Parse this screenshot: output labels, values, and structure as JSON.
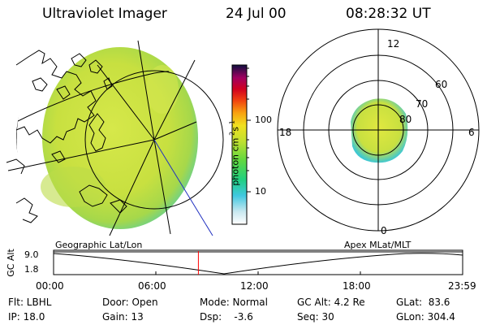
{
  "header": {
    "instrument": "Ultraviolet Imager",
    "date": "24 Jul 00",
    "time": "08:28:32 UT"
  },
  "colorbar": {
    "unit_label": "photon cm",
    "unit_exp1": "-2",
    "unit_mid": "s",
    "unit_exp2": "-1",
    "tick_labels": [
      "100",
      "10"
    ],
    "tick_values": [
      100,
      10
    ]
  },
  "polar_plot": {
    "mlt_labels": [
      "12",
      "18",
      "6",
      "0"
    ],
    "mlat_labels": [
      "60",
      "70",
      "80"
    ]
  },
  "timeline": {
    "left_title": "Geographic Lat/Lon",
    "right_title": "Apex MLat/MLT",
    "axis_label": "GC Alt",
    "y_ticks": [
      "9.0",
      "1.8"
    ],
    "x_ticks": [
      "00:00",
      "06:00",
      "12:00",
      "18:00",
      "23:59"
    ],
    "current_time_fraction": 0.354,
    "marker_color": "#ff0000"
  },
  "status": {
    "row1": [
      "Flt: LBHL",
      "Door: Open",
      "Mode: Normal",
      "GC Alt: 4.2 Re",
      "GLat:  83.6"
    ],
    "row2": [
      "IP: 18.0",
      "Gain: 13",
      "Dsp:    -3.6",
      "Seq: 30",
      "GLon: 304.4"
    ]
  }
}
